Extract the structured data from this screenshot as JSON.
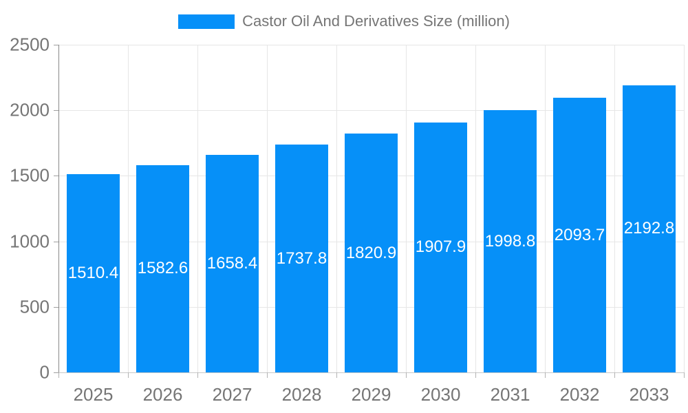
{
  "chart_data": {
    "type": "bar",
    "title": "Castor Oil And Derivatives Size (million)",
    "legend": {
      "position": "top",
      "label": "Castor Oil And Derivatives Size (million)"
    },
    "categories": [
      "2025",
      "2026",
      "2027",
      "2028",
      "2029",
      "2030",
      "2031",
      "2032",
      "2033"
    ],
    "series": [
      {
        "name": "Castor Oil And Derivatives Size (million)",
        "values": [
          1510.4,
          1582.6,
          1658.4,
          1737.8,
          1820.9,
          1907.9,
          1998.8,
          2093.7,
          2192.8
        ]
      }
    ],
    "value_labels": [
      "1510.4",
      "1582.6",
      "1658.4",
      "1737.8",
      "1820.9",
      "1907.9",
      "1998.8",
      "2093.7",
      "2192.8"
    ],
    "xlabel": "",
    "ylabel": "",
    "ylim": [
      0,
      2500
    ],
    "yticks": [
      0,
      500,
      1000,
      1500,
      2000,
      2500
    ],
    "grid": true,
    "colors": {
      "bar": "#0690f8",
      "bar_value_text": "#ffffff",
      "axis_text": "#757575",
      "legend_text": "#757575",
      "gridline": "#e6e6e6",
      "axis_line": "#888888",
      "baseline": "#c9c9c9",
      "background": "#ffffff"
    }
  }
}
